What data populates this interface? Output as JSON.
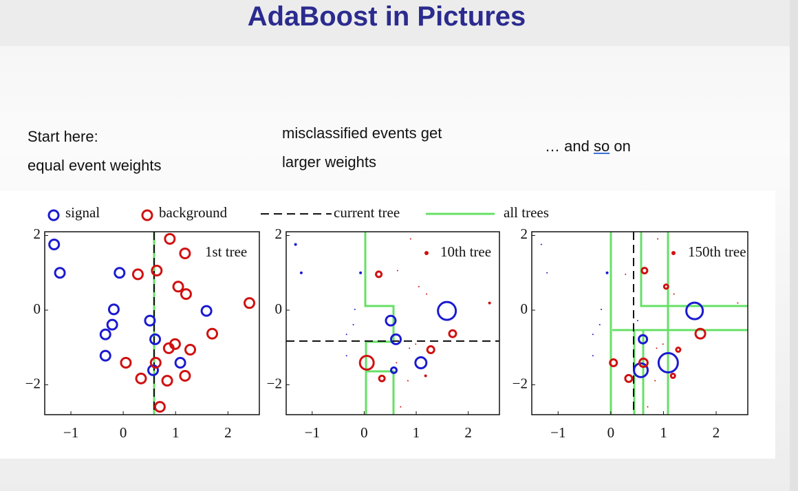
{
  "slide": {
    "title": "AdaBoost in Pictures",
    "captions": [
      [
        "Start here:",
        "equal event weights"
      ],
      [
        "misclassified events get",
        "larger weights"
      ],
      [
        "… and",
        "so",
        "on"
      ]
    ]
  },
  "legend_lines": [
    "current tree",
    "all trees"
  ],
  "chart_data": [
    {
      "type": "scatter",
      "annotation": "1st tree",
      "xlim": [
        -1.5,
        2.6
      ],
      "ylim": [
        -2.8,
        2.1
      ],
      "xticks": [
        {
          "value": -1,
          "label": "−1"
        },
        0,
        1,
        2
      ],
      "yticks": [
        {
          "value": -2,
          "label": "−2"
        },
        0,
        2
      ],
      "series": [
        {
          "name": "signal",
          "color": "#1a1ad0",
          "x": [
            -1.32,
            -1.21,
            -0.07,
            -0.18,
            -0.21,
            -0.34,
            0.51,
            0.61,
            1.59,
            -0.34,
            1.09,
            0.57
          ],
          "values": [
            1.76,
            1.0,
            1.0,
            0.02,
            -0.39,
            -0.65,
            -0.28,
            -0.78,
            -0.02,
            -1.22,
            -1.41,
            -1.61
          ],
          "sizes": [
            7,
            7,
            7,
            7,
            7,
            7,
            7,
            7,
            7,
            7,
            7,
            7
          ]
        },
        {
          "name": "background",
          "color": "#d01010",
          "x": [
            0.89,
            1.18,
            0.64,
            0.28,
            1.05,
            1.2,
            2.41,
            1.7,
            0.99,
            0.87,
            1.28,
            0.05,
            0.62,
            0.34,
            1.18,
            0.84,
            0.7
          ],
          "values": [
            1.91,
            1.52,
            1.06,
            0.96,
            0.63,
            0.43,
            0.19,
            -0.63,
            -0.91,
            -1.02,
            -1.06,
            -1.41,
            -1.41,
            -1.83,
            -1.76,
            -1.89,
            -2.59
          ],
          "sizes": [
            7,
            7,
            7,
            7,
            7,
            7,
            7,
            7,
            7,
            7,
            7,
            7,
            7,
            7,
            7,
            7,
            7
          ]
        }
      ]
    },
    {
      "type": "scatter",
      "annotation": "10th tree",
      "xlim": [
        -1.5,
        2.6
      ],
      "ylim": [
        -2.8,
        2.1
      ],
      "xticks": [
        {
          "value": -1,
          "label": "−1"
        },
        0,
        1,
        2
      ],
      "yticks": [
        {
          "value": -2,
          "label": "−2"
        },
        0,
        2
      ],
      "series": [
        {
          "name": "signal",
          "color": "#1a1ad0",
          "x": [
            -1.32,
            -1.21,
            -0.07,
            -0.18,
            -0.21,
            -0.34,
            0.51,
            0.61,
            1.59,
            -0.34,
            1.09,
            0.57
          ],
          "values": [
            1.76,
            1.0,
            1.0,
            0.02,
            -0.39,
            -0.65,
            -0.28,
            -0.78,
            -0.02,
            -1.22,
            -1.41,
            -1.61
          ],
          "sizes": [
            2,
            2,
            2,
            1,
            1,
            1,
            7,
            7,
            13,
            1,
            8,
            4
          ]
        },
        {
          "name": "background",
          "color": "#d01010",
          "x": [
            0.89,
            1.18,
            0.64,
            0.28,
            1.05,
            1.2,
            2.41,
            1.7,
            0.99,
            0.87,
            1.28,
            0.05,
            0.62,
            0.34,
            1.18,
            0.84,
            0.7
          ],
          "values": [
            1.91,
            1.52,
            1.06,
            0.96,
            0.63,
            0.43,
            0.19,
            -0.63,
            -0.91,
            -1.02,
            -1.06,
            -1.41,
            -1.41,
            -1.83,
            -1.76,
            -1.89,
            -2.59
          ],
          "sizes": [
            1,
            1,
            1,
            4,
            1,
            1,
            2,
            5,
            1,
            1,
            5,
            10,
            1,
            4,
            2,
            1,
            1
          ]
        }
      ]
    },
    {
      "type": "scatter",
      "annotation": "150th tree",
      "xlim": [
        -1.5,
        2.6
      ],
      "ylim": [
        -2.8,
        2.1
      ],
      "xticks": [
        {
          "value": -1,
          "label": "−1"
        },
        0,
        1,
        2
      ],
      "yticks": [
        {
          "value": -2,
          "label": "−2"
        },
        0,
        2
      ],
      "series": [
        {
          "name": "signal",
          "color": "#1a1ad0",
          "x": [
            -1.32,
            -1.21,
            -0.07,
            -0.18,
            -0.21,
            -0.34,
            0.51,
            0.61,
            1.59,
            -0.34,
            1.09,
            0.57
          ],
          "values": [
            1.76,
            1.0,
            1.0,
            0.02,
            -0.39,
            -0.65,
            -0.28,
            -0.78,
            -0.02,
            -1.22,
            -1.41,
            -1.61
          ],
          "sizes": [
            1,
            1,
            2,
            1,
            1,
            1,
            1,
            6,
            12,
            1,
            14,
            10
          ]
        },
        {
          "name": "background",
          "color": "#d01010",
          "x": [
            0.89,
            1.18,
            0.64,
            0.28,
            1.05,
            1.2,
            2.41,
            1.7,
            0.99,
            0.87,
            1.28,
            0.05,
            0.62,
            0.34,
            1.18,
            0.84,
            0.7
          ],
          "values": [
            1.91,
            1.52,
            1.06,
            0.96,
            0.63,
            0.43,
            0.19,
            -0.63,
            -0.91,
            -1.02,
            -1.06,
            -1.41,
            -1.41,
            -1.83,
            -1.76,
            -1.89,
            -2.59
          ],
          "sizes": [
            1,
            1,
            4,
            1,
            3,
            1,
            1,
            7,
            1,
            1,
            3,
            5,
            6,
            5,
            3,
            1,
            1
          ]
        }
      ]
    }
  ]
}
